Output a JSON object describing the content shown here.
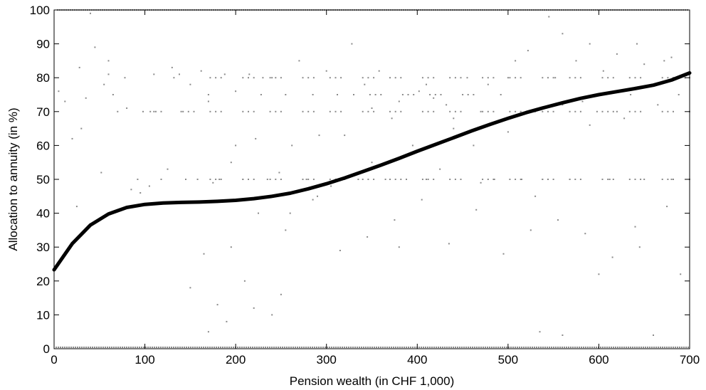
{
  "chart_data": {
    "type": "scatter",
    "xlabel": "Pension wealth (in CHF 1,000)",
    "ylabel": "Allocation to annuity (in %)",
    "xlim": [
      0,
      700
    ],
    "ylim": [
      0,
      100
    ],
    "x_ticks": [
      "0",
      "100",
      "200",
      "300",
      "400",
      "500",
      "600",
      "700"
    ],
    "y_ticks": [
      "0",
      "10",
      "20",
      "30",
      "40",
      "50",
      "60",
      "70",
      "80",
      "90",
      "100"
    ],
    "grid": false,
    "legend": "none",
    "scatter_color": "#8a8a8a",
    "fit_color": "#000000",
    "series": [
      {
        "kind": "scatter",
        "description_points": "sampled individual observations",
        "x": [
          5,
          12,
          20,
          28,
          35,
          40,
          45,
          52,
          60,
          65,
          70,
          78,
          85,
          92,
          98,
          105,
          110,
          118,
          125,
          132,
          138,
          145,
          150,
          158,
          162,
          170,
          175,
          182,
          188,
          195,
          200,
          208,
          215,
          222,
          228,
          235,
          240,
          248,
          255,
          262,
          270,
          278,
          285,
          292,
          300,
          305,
          312,
          320,
          328,
          335,
          342,
          350,
          358,
          365,
          372,
          380,
          388,
          395,
          402,
          410,
          418,
          425,
          432,
          440,
          448,
          455,
          462,
          470,
          478,
          485,
          492,
          500,
          508,
          515,
          522,
          530,
          538,
          545,
          552,
          560,
          568,
          575,
          582,
          590,
          598,
          605,
          612,
          620,
          628,
          635,
          642,
          650,
          658,
          665,
          672,
          680,
          688,
          695,
          30,
          55,
          80,
          110,
          140,
          170,
          200,
          230,
          260,
          290,
          320,
          350,
          380,
          410,
          440,
          470,
          500,
          530,
          560,
          590,
          620,
          650,
          680,
          25,
          60,
          95,
          130,
          165,
          195,
          225,
          255,
          285,
          315,
          345,
          375,
          405,
          435,
          465,
          495,
          525,
          555,
          585,
          615,
          645,
          675,
          150,
          180,
          210,
          240,
          170,
          190,
          220,
          250,
          535,
          560,
          600,
          640,
          660,
          690
        ],
        "y": [
          76,
          73,
          62,
          83,
          74,
          99,
          89,
          52,
          81,
          75,
          70,
          80,
          47,
          50,
          70,
          48,
          70,
          50,
          53,
          80,
          81,
          50,
          78,
          50,
          82,
          75,
          49,
          50,
          81,
          55,
          76,
          50,
          81,
          62,
          75,
          50,
          80,
          52,
          75,
          60,
          85,
          50,
          75,
          63,
          82,
          48,
          75,
          50,
          90,
          50,
          78,
          55,
          82,
          50,
          68,
          73,
          50,
          60,
          76,
          50,
          74,
          53,
          72,
          65,
          50,
          80,
          60,
          70,
          78,
          50,
          75,
          64,
          85,
          50,
          88,
          70,
          50,
          98,
          80,
          72,
          50,
          85,
          73,
          90,
          70,
          82,
          50,
          87,
          68,
          75,
          90,
          50,
          78,
          72,
          85,
          50,
          75,
          80,
          65,
          78,
          71,
          81,
          70,
          73,
          60,
          80,
          40,
          45,
          63,
          71,
          30,
          78,
          68,
          49,
          80,
          45,
          93,
          66,
          70,
          84,
          86,
          42,
          85,
          46,
          83,
          28,
          30,
          40,
          35,
          44,
          29,
          33,
          38,
          44,
          31,
          41,
          28,
          35,
          38,
          34,
          27,
          30,
          42,
          18,
          13,
          20,
          10,
          5,
          8,
          12,
          16,
          5,
          4,
          22,
          36,
          4,
          22
        ],
        "top_row_x": [
          15,
          40,
          95,
          150,
          210,
          270,
          330,
          390,
          450,
          510,
          570,
          630,
          690
        ],
        "bottom_row_x": [
          10,
          60,
          120,
          180,
          240,
          300,
          360,
          420,
          480,
          540,
          600,
          650,
          700
        ],
        "top_row_y": 100,
        "bottom_row_y": 0
      },
      {
        "kind": "fit-line",
        "x": [
          0,
          20,
          40,
          60,
          80,
          100,
          120,
          140,
          160,
          180,
          200,
          220,
          240,
          260,
          280,
          300,
          320,
          340,
          360,
          380,
          400,
          420,
          440,
          460,
          480,
          500,
          520,
          540,
          560,
          580,
          600,
          620,
          640,
          660,
          680,
          700
        ],
        "y": [
          23.3,
          31,
          36.5,
          39.8,
          41.7,
          42.6,
          43,
          43.2,
          43.3,
          43.5,
          43.8,
          44.3,
          45,
          45.9,
          47.2,
          48.7,
          50.4,
          52.3,
          54.2,
          56.2,
          58.3,
          60.3,
          62.3,
          64.3,
          66.2,
          68,
          69.7,
          71.2,
          72.6,
          73.9,
          75,
          75.9,
          76.8,
          77.8,
          79.3,
          81.4
        ]
      }
    ]
  }
}
